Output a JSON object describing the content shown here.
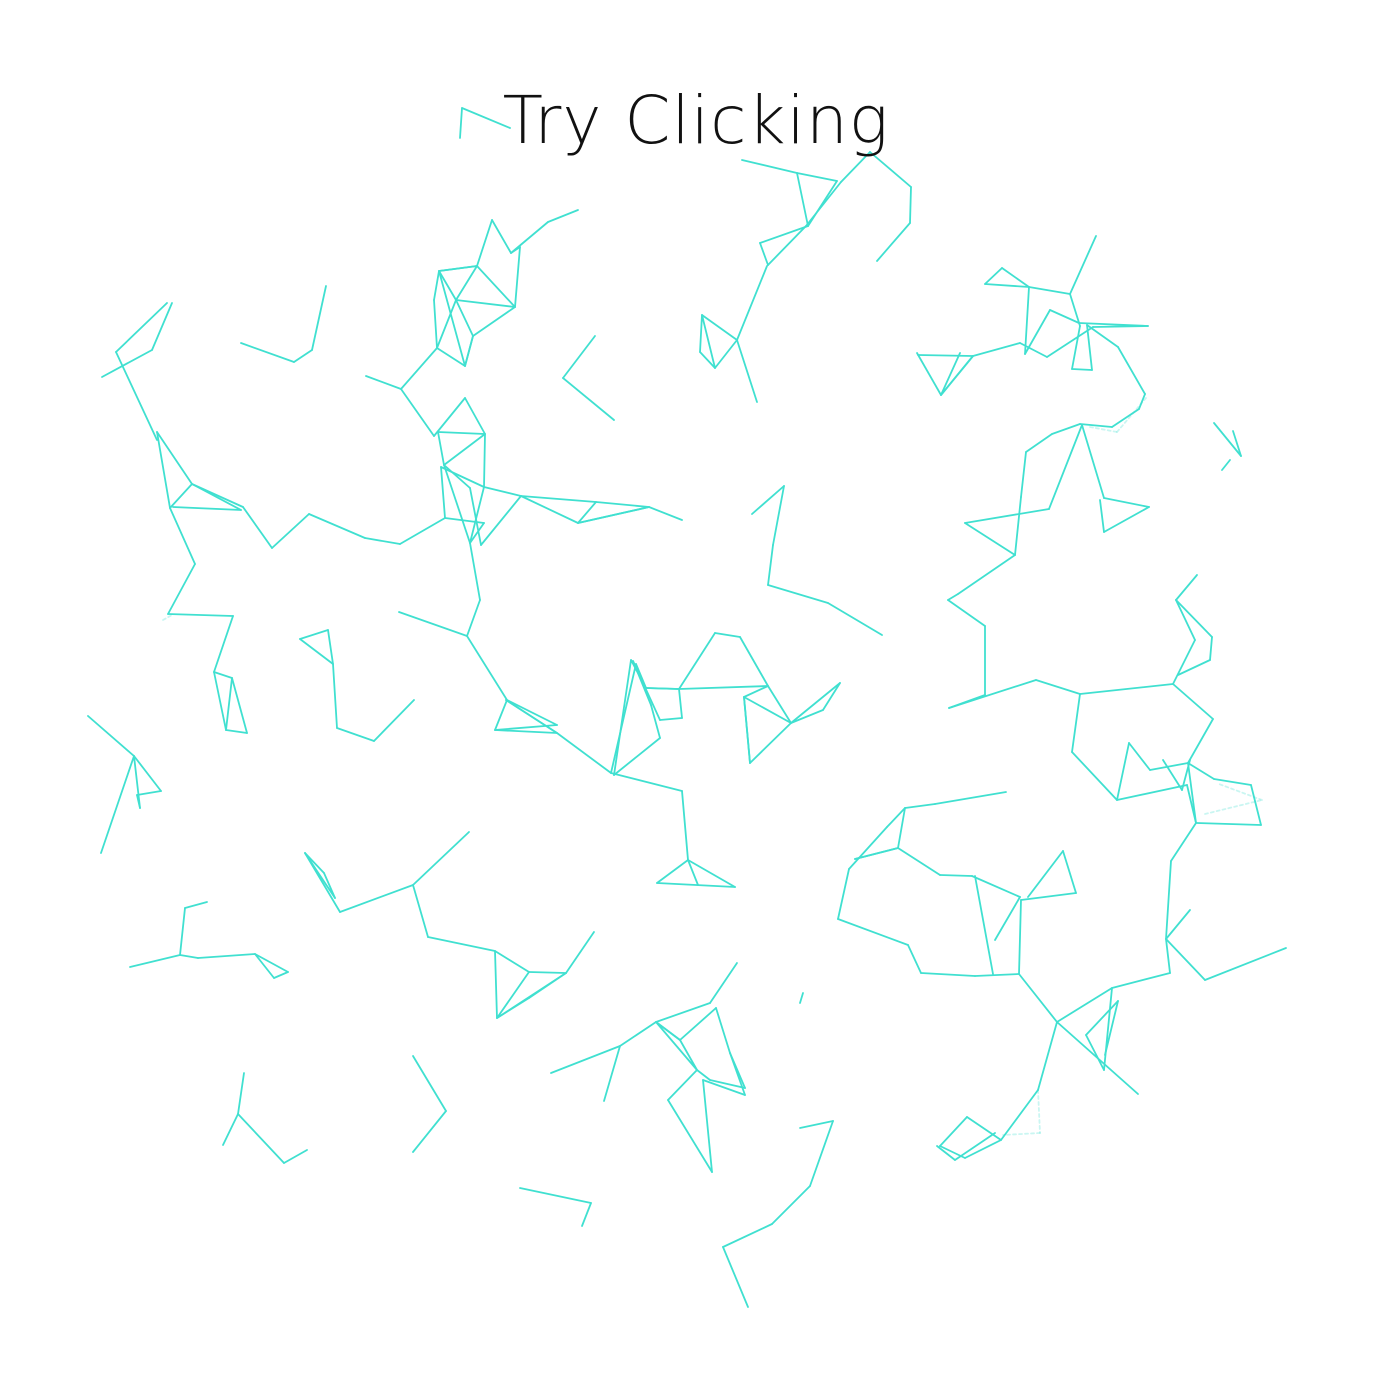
{
  "page": {
    "title": "Try Clicking"
  },
  "theme": {
    "background": "#ffffff",
    "line_color": "#40e0d0",
    "title_color": "#111111"
  },
  "network": {
    "description_icon": "particle-network"
  }
}
